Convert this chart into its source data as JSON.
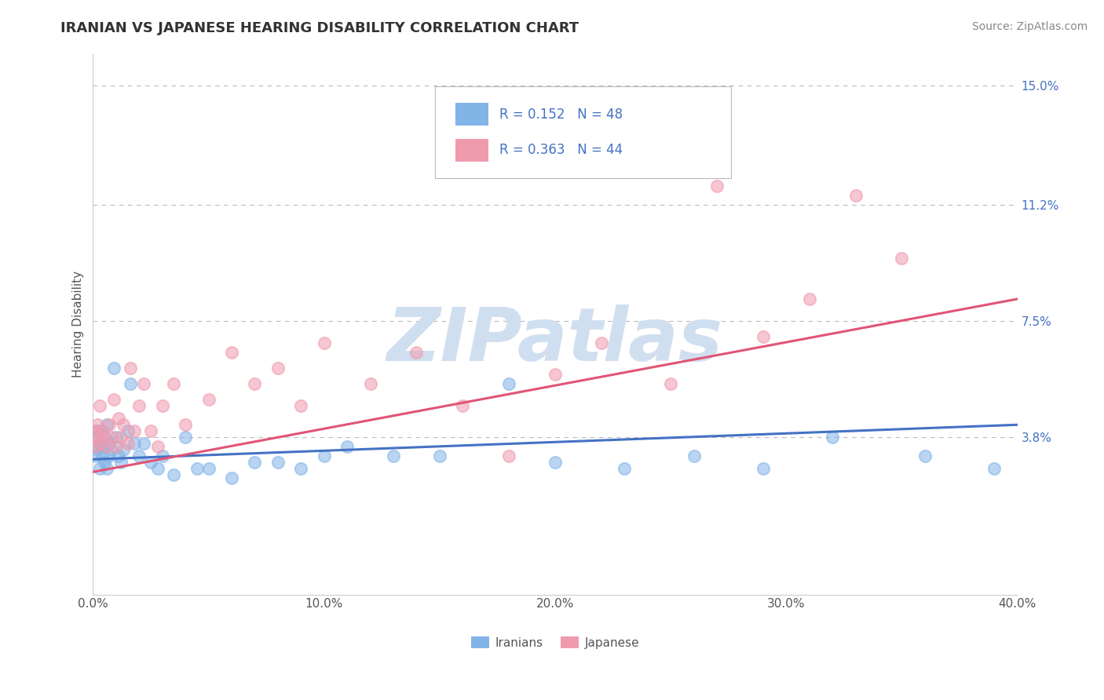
{
  "title": "IRANIAN VS JAPANESE HEARING DISABILITY CORRELATION CHART",
  "source": "Source: ZipAtlas.com",
  "ylabel": "Hearing Disability",
  "xlim": [
    0.0,
    0.4
  ],
  "ylim": [
    -0.012,
    0.16
  ],
  "yticks": [
    0.038,
    0.075,
    0.112,
    0.15
  ],
  "ytick_labels": [
    "3.8%",
    "7.5%",
    "11.2%",
    "15.0%"
  ],
  "xticks": [
    0.0,
    0.1,
    0.2,
    0.3,
    0.4
  ],
  "xtick_labels": [
    "0.0%",
    "10.0%",
    "20.0%",
    "30.0%",
    "40.0%"
  ],
  "iranian_color": "#82B4E8",
  "japanese_color": "#F09AAE",
  "iranian_line_color": "#4472C4",
  "japanese_line_color": "#E05575",
  "R_iranian": 0.152,
  "N_iranian": 48,
  "R_japanese": 0.363,
  "N_japanese": 44,
  "watermark": "ZIPatlas",
  "watermark_color": "#D0DFF0",
  "background_color": "#FFFFFF",
  "iranian_line_x0": 0.0,
  "iranian_line_y0": 0.031,
  "iranian_line_x1": 0.4,
  "iranian_line_y1": 0.042,
  "japanese_line_x0": 0.0,
  "japanese_line_y0": 0.027,
  "japanese_line_x1": 0.4,
  "japanese_line_y1": 0.082,
  "iranian_points_x": [
    0.001,
    0.001,
    0.002,
    0.002,
    0.003,
    0.003,
    0.004,
    0.004,
    0.005,
    0.005,
    0.006,
    0.006,
    0.007,
    0.007,
    0.008,
    0.009,
    0.01,
    0.011,
    0.012,
    0.013,
    0.015,
    0.016,
    0.018,
    0.02,
    0.022,
    0.025,
    0.028,
    0.03,
    0.035,
    0.04,
    0.045,
    0.05,
    0.06,
    0.07,
    0.08,
    0.09,
    0.1,
    0.11,
    0.13,
    0.15,
    0.18,
    0.2,
    0.23,
    0.26,
    0.29,
    0.32,
    0.36,
    0.39
  ],
  "iranian_points_y": [
    0.032,
    0.038,
    0.034,
    0.04,
    0.036,
    0.028,
    0.035,
    0.032,
    0.038,
    0.03,
    0.042,
    0.028,
    0.036,
    0.032,
    0.034,
    0.06,
    0.038,
    0.032,
    0.03,
    0.034,
    0.04,
    0.055,
    0.036,
    0.032,
    0.036,
    0.03,
    0.028,
    0.032,
    0.026,
    0.038,
    0.028,
    0.028,
    0.025,
    0.03,
    0.03,
    0.028,
    0.032,
    0.035,
    0.032,
    0.032,
    0.055,
    0.03,
    0.028,
    0.032,
    0.028,
    0.038,
    0.032,
    0.028
  ],
  "japanese_points_x": [
    0.001,
    0.001,
    0.002,
    0.002,
    0.003,
    0.003,
    0.004,
    0.005,
    0.006,
    0.007,
    0.008,
    0.009,
    0.01,
    0.011,
    0.012,
    0.013,
    0.015,
    0.016,
    0.018,
    0.02,
    0.022,
    0.025,
    0.028,
    0.03,
    0.035,
    0.04,
    0.05,
    0.06,
    0.07,
    0.08,
    0.09,
    0.1,
    0.12,
    0.14,
    0.16,
    0.18,
    0.2,
    0.22,
    0.25,
    0.27,
    0.29,
    0.31,
    0.33,
    0.35
  ],
  "japanese_points_y": [
    0.035,
    0.04,
    0.038,
    0.042,
    0.036,
    0.048,
    0.04,
    0.038,
    0.035,
    0.042,
    0.038,
    0.05,
    0.035,
    0.044,
    0.038,
    0.042,
    0.036,
    0.06,
    0.04,
    0.048,
    0.055,
    0.04,
    0.035,
    0.048,
    0.055,
    0.042,
    0.05,
    0.065,
    0.055,
    0.06,
    0.048,
    0.068,
    0.055,
    0.065,
    0.048,
    0.032,
    0.058,
    0.068,
    0.055,
    0.118,
    0.07,
    0.082,
    0.115,
    0.095
  ]
}
